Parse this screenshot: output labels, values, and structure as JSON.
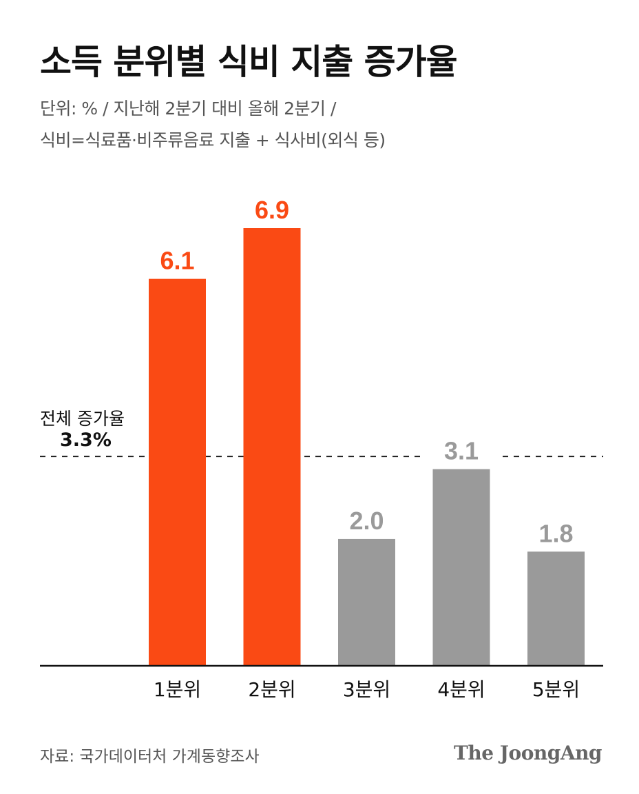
{
  "header": {
    "title": "소득 분위별 식비 지출 증가율",
    "subtitle_line1": "단위: % / 지난해 2분기 대비 올해 2분기 /",
    "subtitle_line2": "식비=식료품·비주류음료 지출 + 식사비(외식 등)"
  },
  "reference": {
    "label": "전체 증가율",
    "value_text": "3.3%"
  },
  "footer": {
    "source": "자료: 국가데이터처 가계동향조사",
    "brand": "The JoongAng"
  },
  "colors": {
    "highlight": "#fa4a14",
    "muted": "#9a9a9a",
    "axis": "#111111",
    "label_dark": "#111111"
  },
  "chart_data": {
    "type": "bar",
    "categories": [
      "1분위",
      "2분위",
      "3분위",
      "4분위",
      "5분위"
    ],
    "values": [
      6.1,
      6.9,
      2.0,
      3.1,
      1.8
    ],
    "value_labels": [
      "6.1",
      "6.9",
      "2.0",
      "3.1",
      "1.8"
    ],
    "highlight": [
      true,
      true,
      false,
      false,
      false
    ],
    "reference_line": 3.3,
    "ylim": [
      0,
      6.9
    ],
    "grid": false,
    "legend": "none"
  }
}
